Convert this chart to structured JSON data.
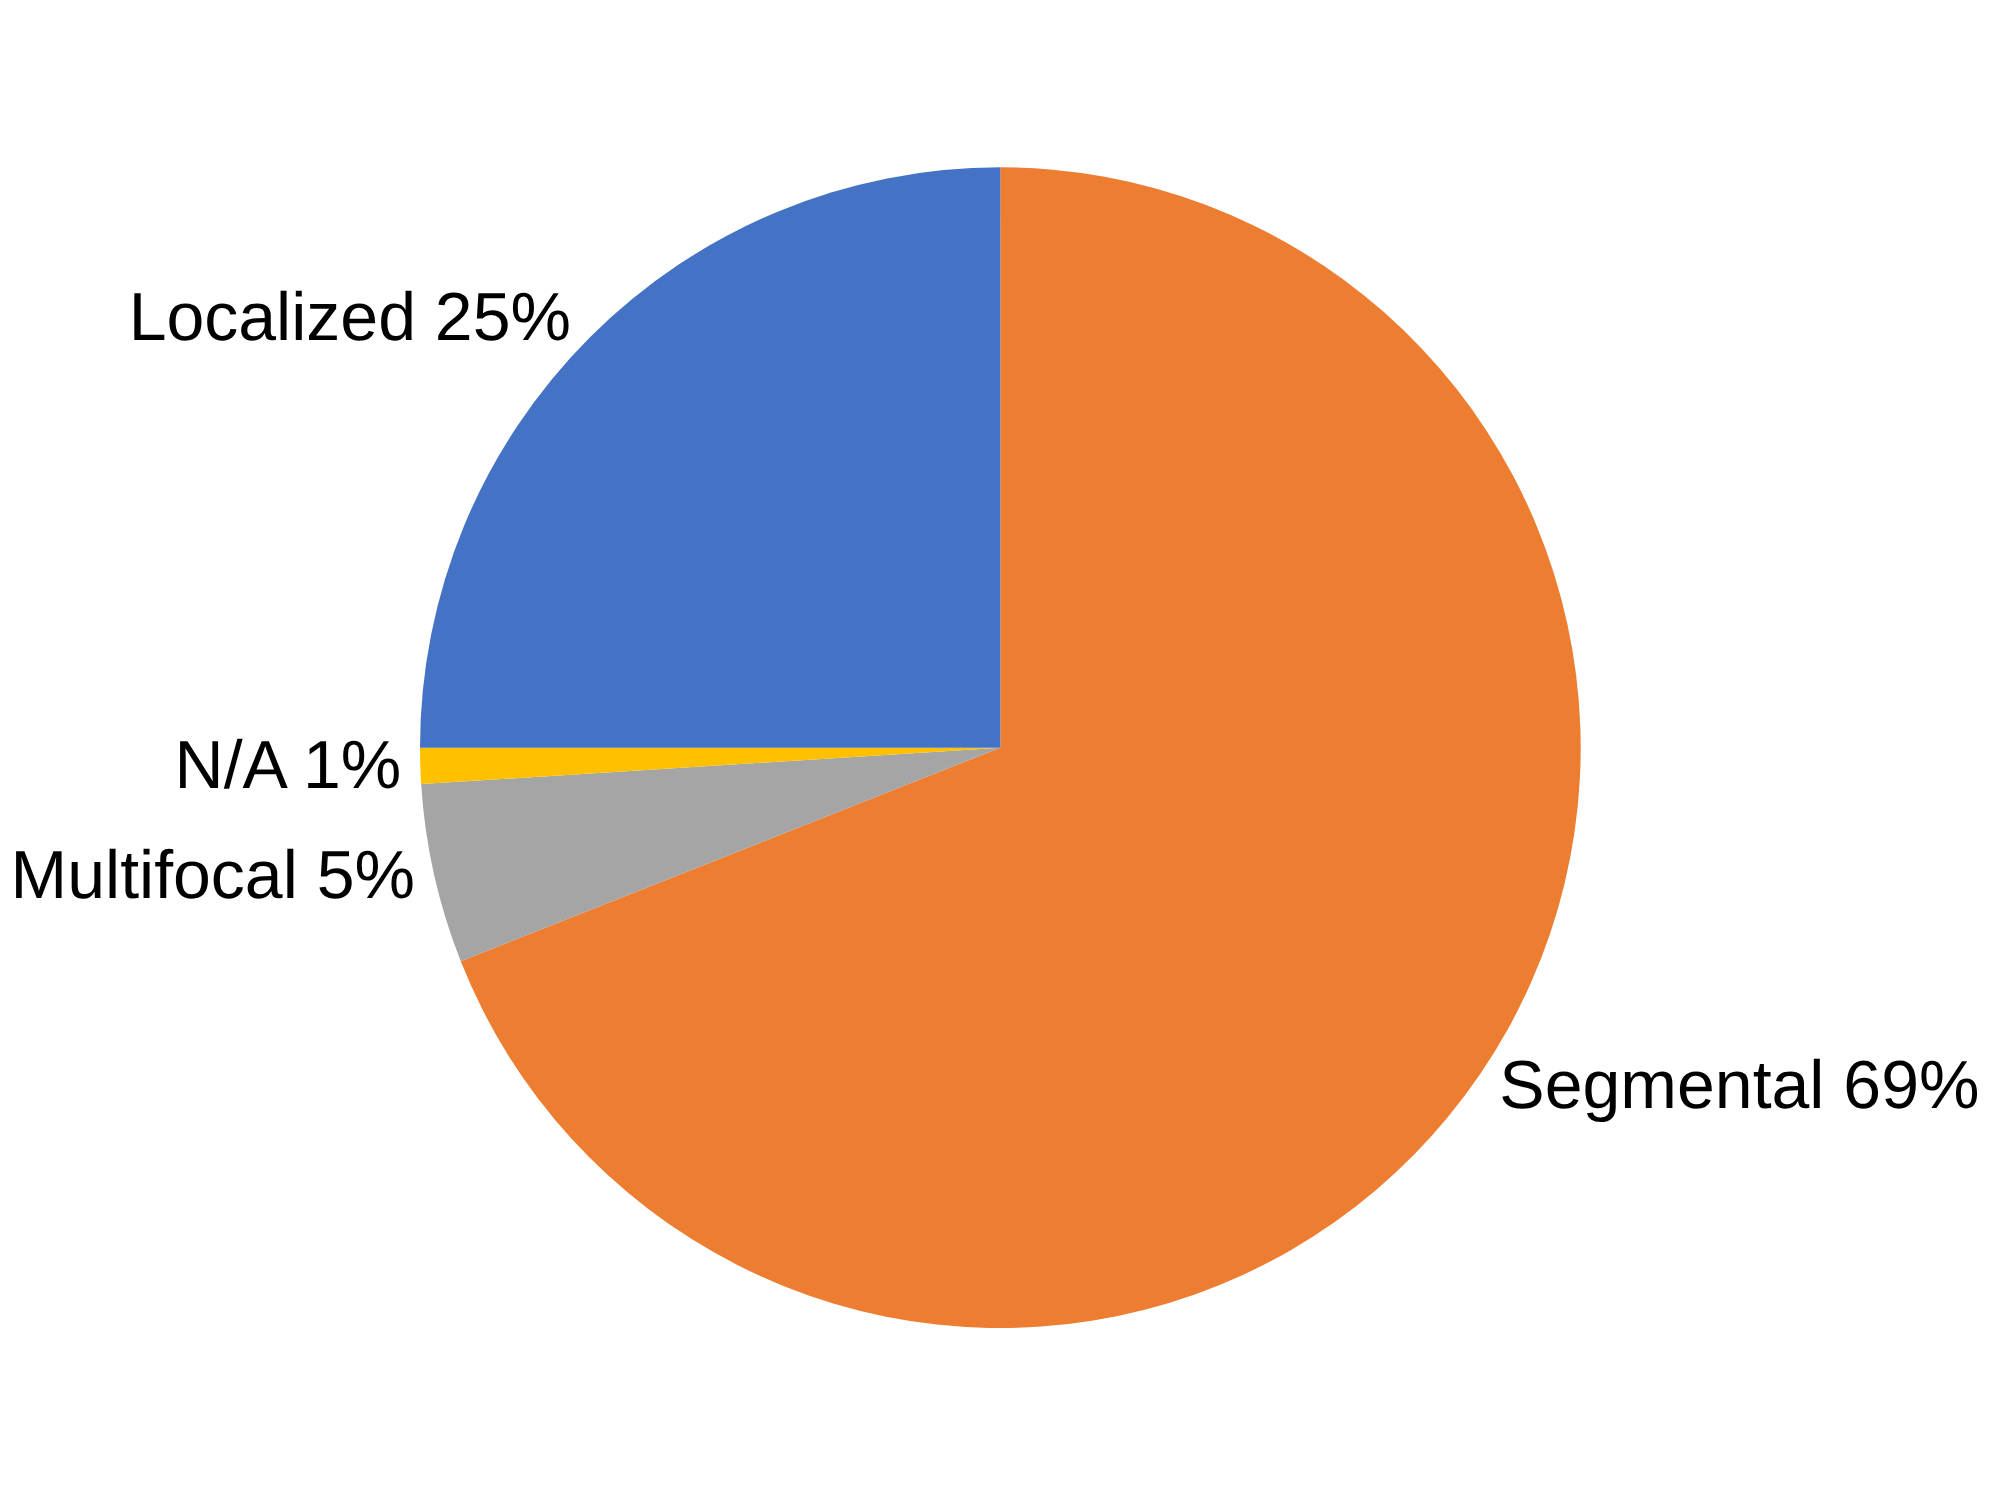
{
  "chart_data": {
    "type": "pie",
    "categories": [
      "Segmental",
      "Multifocal",
      "N/A",
      "Localized"
    ],
    "values": [
      69,
      5,
      1,
      25
    ],
    "value_labels": [
      "69%",
      "5%",
      "1%",
      "25%"
    ],
    "colors": [
      "#ed7d31",
      "#a5a5a5",
      "#ffc000",
      "#4472c4"
    ],
    "legend": false
  }
}
